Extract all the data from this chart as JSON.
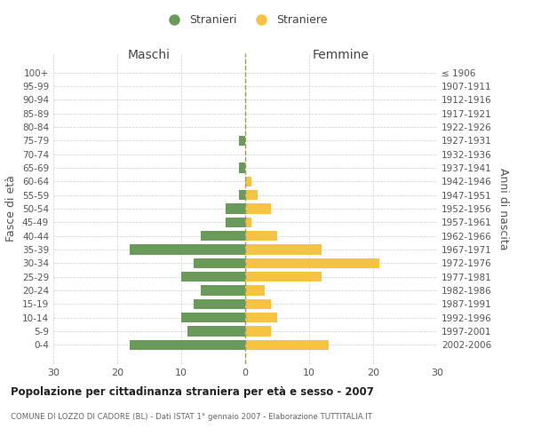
{
  "age_groups": [
    "100+",
    "95-99",
    "90-94",
    "85-89",
    "80-84",
    "75-79",
    "70-74",
    "65-69",
    "60-64",
    "55-59",
    "50-54",
    "45-49",
    "40-44",
    "35-39",
    "30-34",
    "25-29",
    "20-24",
    "15-19",
    "10-14",
    "5-9",
    "0-4"
  ],
  "birth_years": [
    "≤ 1906",
    "1907-1911",
    "1912-1916",
    "1917-1921",
    "1922-1926",
    "1927-1931",
    "1932-1936",
    "1937-1941",
    "1942-1946",
    "1947-1951",
    "1952-1956",
    "1957-1961",
    "1962-1966",
    "1967-1971",
    "1972-1976",
    "1977-1981",
    "1982-1986",
    "1987-1991",
    "1992-1996",
    "1997-2001",
    "2002-2006"
  ],
  "males": [
    0,
    0,
    0,
    0,
    0,
    1,
    0,
    1,
    0,
    1,
    3,
    3,
    7,
    18,
    8,
    10,
    7,
    8,
    10,
    9,
    18
  ],
  "females": [
    0,
    0,
    0,
    0,
    0,
    0,
    0,
    0,
    1,
    2,
    4,
    1,
    5,
    12,
    21,
    12,
    3,
    4,
    5,
    4,
    13
  ],
  "male_color": "#6a9a5a",
  "female_color": "#f5c242",
  "background_color": "#ffffff",
  "grid_color": "#cccccc",
  "title": "Popolazione per cittadinanza straniera per età e sesso - 2007",
  "subtitle": "COMUNE DI LOZZO DI CADORE (BL) - Dati ISTAT 1° gennaio 2007 - Elaborazione TUTTITALIA.IT",
  "xlabel_left": "Maschi",
  "xlabel_right": "Femmine",
  "ylabel_left": "Fasce di età",
  "ylabel_right": "Anni di nascita",
  "xlim": 30,
  "legend_stranieri": "Stranieri",
  "legend_straniere": "Straniere"
}
